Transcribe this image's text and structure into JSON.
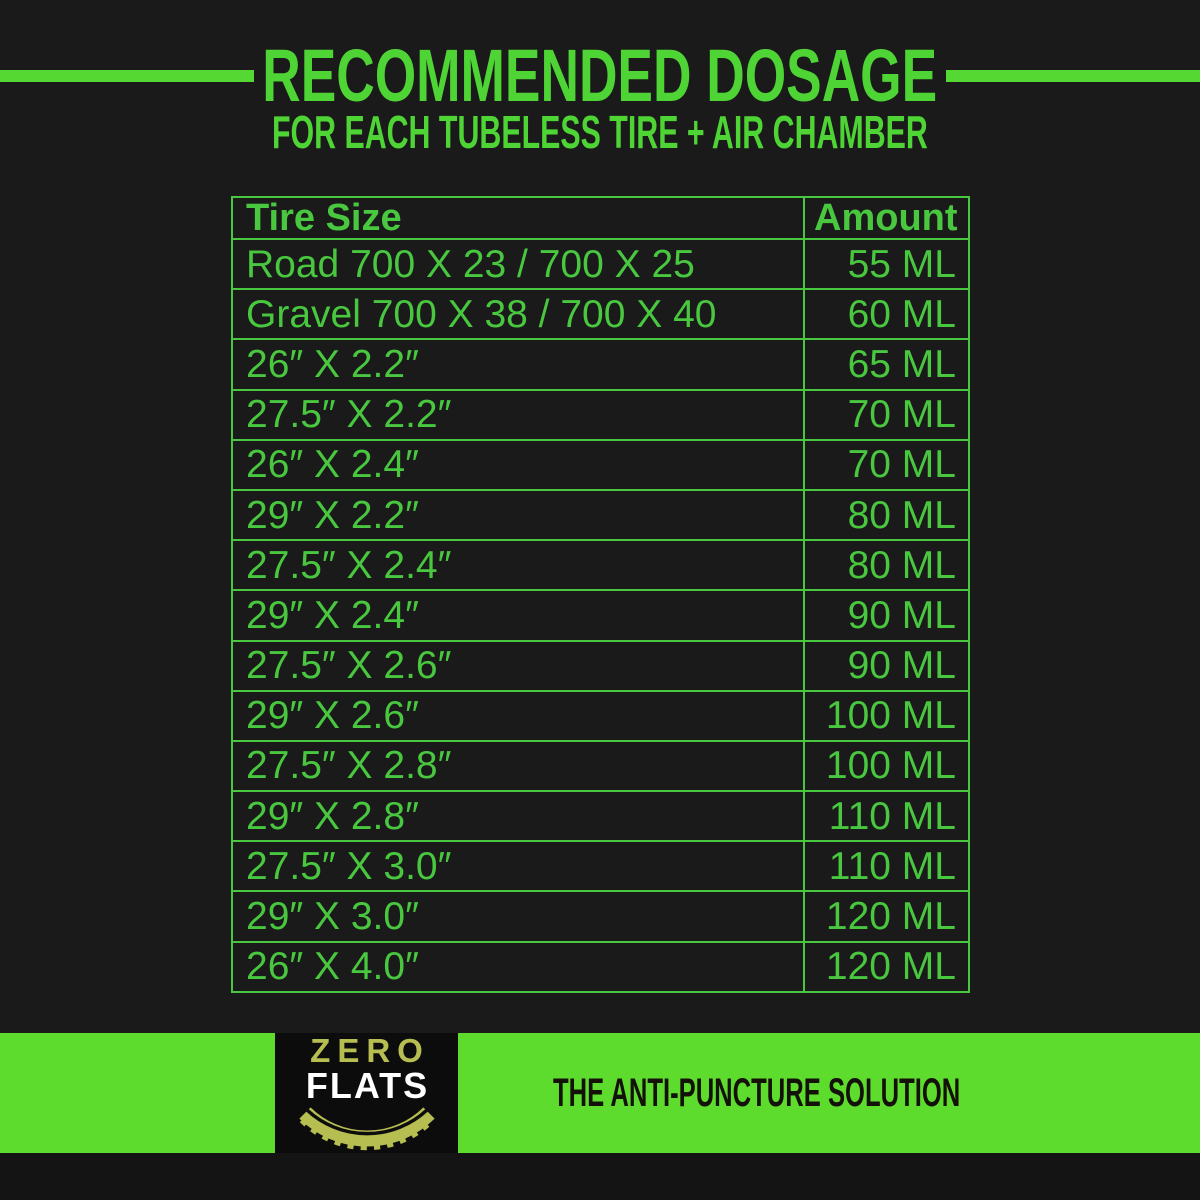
{
  "header": {
    "title": "RECOMMENDED DOSAGE",
    "subtitle": "FOR EACH TUBELESS TIRE + AIR CHAMBER"
  },
  "chart_data": {
    "type": "table",
    "title": "RECOMMENDED DOSAGE",
    "subtitle": "FOR EACH TUBELESS TIRE + AIR CHAMBER",
    "columns": [
      "Tire Size",
      "Amount"
    ],
    "rows": [
      {
        "tire_size": "Road 700 X 23 / 700 X 25",
        "amount": "55 ML"
      },
      {
        "tire_size": "Gravel 700 X 38 / 700 X 40",
        "amount": "60 ML"
      },
      {
        "tire_size": "26″ X 2.2″",
        "amount": "65 ML"
      },
      {
        "tire_size": "27.5″ X 2.2″",
        "amount": "70 ML"
      },
      {
        "tire_size": "26″ X 2.4″",
        "amount": "70 ML"
      },
      {
        "tire_size": "29″ X 2.2″",
        "amount": "80 ML"
      },
      {
        "tire_size": "27.5″ X 2.4″",
        "amount": "80 ML"
      },
      {
        "tire_size": "29″ X 2.4″",
        "amount": "90 ML"
      },
      {
        "tire_size": "27.5″ X 2.6″",
        "amount": "90 ML"
      },
      {
        "tire_size": "29″ X 2.6″",
        "amount": "100 ML"
      },
      {
        "tire_size": "27.5″ X 2.8″",
        "amount": "100 ML"
      },
      {
        "tire_size": "29″ X 2.8″",
        "amount": "110 ML"
      },
      {
        "tire_size": "27.5″ X 3.0″",
        "amount": "110 ML"
      },
      {
        "tire_size": "29″ X 3.0″",
        "amount": "120 ML"
      },
      {
        "tire_size": "26″ X 4.0″",
        "amount": "120 ML"
      }
    ],
    "amount_unit": "ML",
    "layout_hints": {
      "grid": "full green borders",
      "amount_align": "right",
      "tire_align": "left"
    }
  },
  "footer": {
    "logo_line1": "ZERO",
    "logo_line2": "FLATS",
    "tagline": "THE ANTI-PUNCTURE SOLUTION"
  },
  "icons": {
    "tire_tread_icon": "tire-tread-arc"
  },
  "colors": {
    "background": "#1a1a1a",
    "green_title": "#4ed434",
    "green_rule": "#56d832",
    "green_text": "#48c73f",
    "banner_green": "#5edc2e",
    "logo_box_black": "#0c0c0c",
    "logo_olive": "#b6bd51",
    "logo_white": "#ffffff",
    "tagline_black": "#141109",
    "bottom_strip": "#141414"
  }
}
